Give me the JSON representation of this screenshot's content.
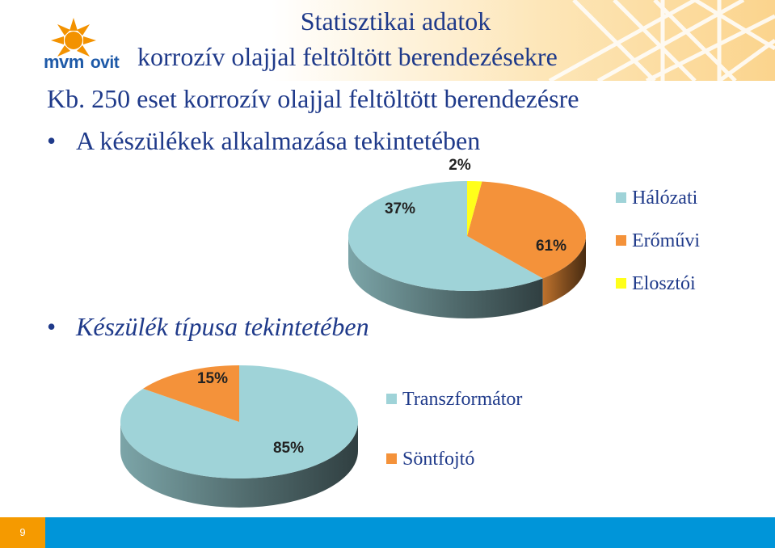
{
  "logo": {
    "brand": "mvm",
    "sub": "ovit"
  },
  "header": {
    "title_line1": "Statisztikai adatok",
    "title_line2": "korrozív olajjal feltöltött berendezésekre"
  },
  "subtitle": "Kb. 250 eset korrozív olajjal feltöltött berendezésre",
  "bullets": {
    "application": "A készülékek alkalmazása tekintetében",
    "type": "Készülék típusa tekintetében"
  },
  "colors": {
    "teal": "#9fd3d8",
    "orange": "#f4923a",
    "yellow": "#ffff1a",
    "title": "#1f3a8a",
    "footer": "#0095d9"
  },
  "chart_data": [
    {
      "type": "pie",
      "categories": [
        "Hálózati",
        "Erőművi",
        "Elosztói"
      ],
      "values": [
        61,
        37,
        2
      ],
      "labels": [
        "61%",
        "37%",
        "2%"
      ],
      "legend_position": "right"
    },
    {
      "type": "pie",
      "categories": [
        "Transzformátor",
        "Söntfojtó"
      ],
      "values": [
        85,
        15
      ],
      "labels": [
        "85%",
        "15%"
      ],
      "legend_position": "right"
    }
  ],
  "footer": {
    "page_number": "9"
  }
}
